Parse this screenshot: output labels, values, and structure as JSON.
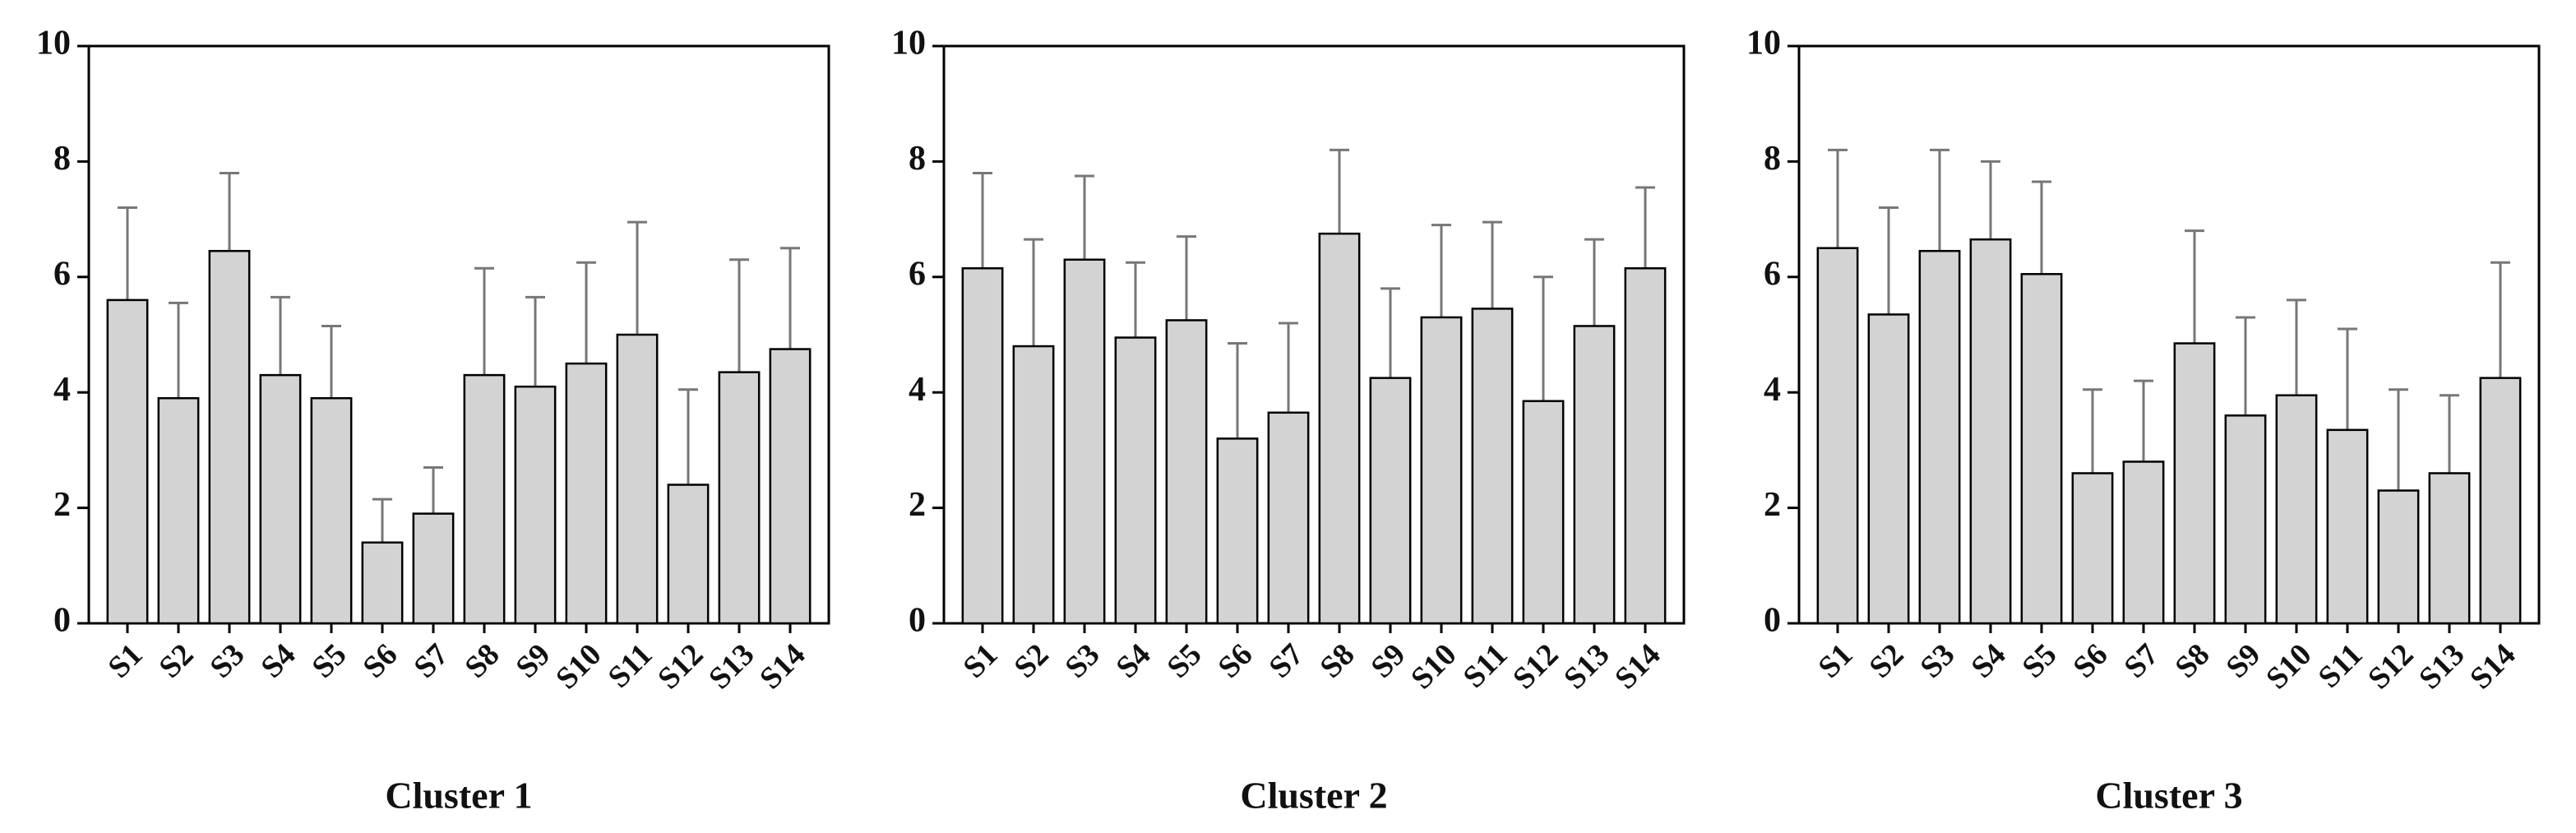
{
  "chart_data": [
    {
      "type": "bar",
      "title": "Cluster 1",
      "categories": [
        "S1",
        "S2",
        "S3",
        "S4",
        "S5",
        "S6",
        "S7",
        "S8",
        "S9",
        "S10",
        "S11",
        "S12",
        "S13",
        "S14"
      ],
      "values": [
        5.6,
        3.9,
        6.45,
        4.3,
        3.9,
        1.4,
        1.9,
        4.3,
        4.1,
        4.5,
        5.0,
        2.4,
        4.35,
        4.75
      ],
      "errors": [
        1.6,
        1.65,
        1.35,
        1.35,
        1.25,
        0.75,
        0.8,
        1.85,
        1.55,
        1.75,
        1.95,
        1.65,
        1.95,
        1.75
      ],
      "color": "#d3d3d3",
      "ylim": [
        0,
        10
      ],
      "yticks": [
        0,
        2,
        4,
        6,
        8,
        10
      ]
    },
    {
      "type": "bar",
      "title": "Cluster 2",
      "categories": [
        "S1",
        "S2",
        "S3",
        "S4",
        "S5",
        "S6",
        "S7",
        "S8",
        "S9",
        "S10",
        "S11",
        "S12",
        "S13",
        "S14"
      ],
      "values": [
        6.15,
        4.8,
        6.3,
        4.95,
        5.25,
        3.2,
        3.65,
        6.75,
        4.25,
        5.3,
        5.45,
        3.85,
        5.15,
        6.15
      ],
      "errors": [
        1.65,
        1.85,
        1.45,
        1.3,
        1.45,
        1.65,
        1.55,
        1.45,
        1.55,
        1.6,
        1.5,
        2.15,
        1.5,
        1.4
      ],
      "color": "#d3d3d3",
      "ylim": [
        0,
        10
      ],
      "yticks": [
        0,
        2,
        4,
        6,
        8,
        10
      ]
    },
    {
      "type": "bar",
      "title": "Cluster 3",
      "categories": [
        "S1",
        "S2",
        "S3",
        "S4",
        "S5",
        "S6",
        "S7",
        "S8",
        "S9",
        "S10",
        "S11",
        "S12",
        "S13",
        "S14"
      ],
      "values": [
        6.5,
        5.35,
        6.45,
        6.65,
        6.05,
        2.6,
        2.8,
        4.85,
        3.6,
        3.95,
        3.35,
        2.3,
        2.6,
        4.25
      ],
      "errors": [
        1.7,
        1.85,
        1.75,
        1.35,
        1.6,
        1.45,
        1.4,
        1.95,
        1.7,
        1.65,
        1.75,
        1.75,
        1.35,
        2.0
      ],
      "color": "#d3d3d3",
      "ylim": [
        0,
        10
      ],
      "yticks": [
        0,
        2,
        4,
        6,
        8,
        10
      ]
    }
  ]
}
